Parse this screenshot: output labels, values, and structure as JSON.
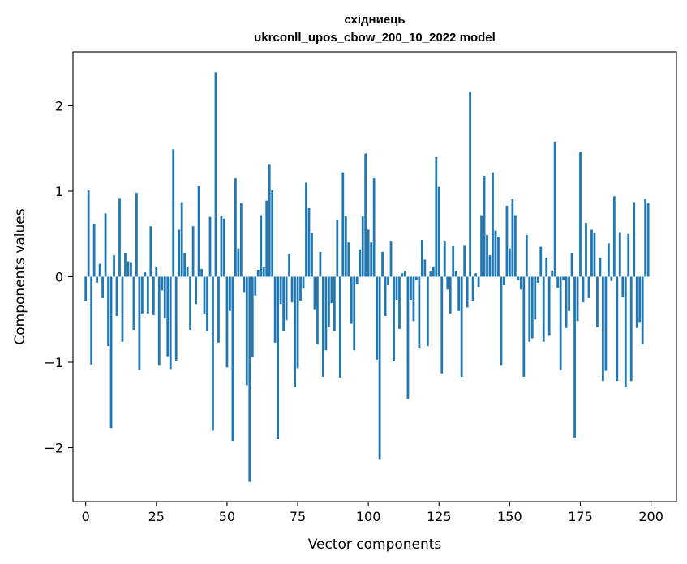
{
  "chart_data": {
    "type": "bar",
    "title_line1": "східниець",
    "title_line2": "ukrconll_upos_cbow_200_10_2022 model",
    "xlabel": "Vector components",
    "ylabel": "Components values",
    "xlim": [
      -4.5,
      209
    ],
    "ylim": [
      -2.63,
      2.63
    ],
    "xticks": [
      0,
      25,
      50,
      75,
      100,
      125,
      150,
      175,
      200
    ],
    "yticks": [
      -2,
      -1,
      0,
      1,
      2
    ],
    "ytick_labels": [
      "−2",
      "−1",
      "0",
      "1",
      "2"
    ],
    "bar_color": "#1f77b4",
    "grid": false,
    "legend": "none",
    "x": [
      0,
      1,
      2,
      3,
      4,
      5,
      6,
      7,
      8,
      9,
      10,
      11,
      12,
      13,
      14,
      15,
      16,
      17,
      18,
      19,
      20,
      21,
      22,
      23,
      24,
      25,
      26,
      27,
      28,
      29,
      30,
      31,
      32,
      33,
      34,
      35,
      36,
      37,
      38,
      39,
      40,
      41,
      42,
      43,
      44,
      45,
      46,
      47,
      48,
      49,
      50,
      51,
      52,
      53,
      54,
      55,
      56,
      57,
      58,
      59,
      60,
      61,
      62,
      63,
      64,
      65,
      66,
      67,
      68,
      69,
      70,
      71,
      72,
      73,
      74,
      75,
      76,
      77,
      78,
      79,
      80,
      81,
      82,
      83,
      84,
      85,
      86,
      87,
      88,
      89,
      90,
      91,
      92,
      93,
      94,
      95,
      96,
      97,
      98,
      99,
      100,
      101,
      102,
      103,
      104,
      105,
      106,
      107,
      108,
      109,
      110,
      111,
      112,
      113,
      114,
      115,
      116,
      117,
      118,
      119,
      120,
      121,
      122,
      123,
      124,
      125,
      126,
      127,
      128,
      129,
      130,
      131,
      132,
      133,
      134,
      135,
      136,
      137,
      138,
      139,
      140,
      141,
      142,
      143,
      144,
      145,
      146,
      147,
      148,
      149,
      150,
      151,
      152,
      153,
      154,
      155,
      156,
      157,
      158,
      159,
      160,
      161,
      162,
      163,
      164,
      165,
      166,
      167,
      168,
      169,
      170,
      171,
      172,
      173,
      174,
      175,
      176,
      177,
      178,
      179,
      180,
      181,
      182,
      183,
      184,
      185,
      186,
      187,
      188,
      189,
      190,
      191,
      192,
      193,
      194,
      195,
      196,
      197,
      198,
      199
    ],
    "values": [
      -0.28,
      1.01,
      -1.03,
      0.62,
      -0.07,
      0.15,
      -0.25,
      0.74,
      -0.81,
      -1.77,
      0.25,
      -0.46,
      0.92,
      -0.76,
      0.28,
      0.18,
      0.17,
      -0.62,
      0.98,
      -1.09,
      -0.43,
      0.05,
      -0.43,
      0.59,
      -0.45,
      0.12,
      -1.04,
      -0.16,
      -0.49,
      -0.93,
      -1.08,
      1.49,
      -0.98,
      0.55,
      0.87,
      0.28,
      0.12,
      -0.62,
      0.59,
      -0.32,
      1.06,
      0.09,
      -0.44,
      -0.64,
      0.7,
      -1.8,
      2.39,
      -0.77,
      0.71,
      0.68,
      -1.06,
      -0.4,
      -1.92,
      1.15,
      0.33,
      0.86,
      -0.18,
      -1.27,
      -2.4,
      -0.94,
      -0.22,
      0.08,
      0.72,
      0.11,
      0.89,
      1.31,
      1.01,
      -0.77,
      -1.9,
      -0.32,
      -0.63,
      -0.51,
      0.27,
      -0.3,
      -1.29,
      -1.07,
      -0.28,
      -0.14,
      1.1,
      0.8,
      0.51,
      -0.38,
      -0.79,
      0.29,
      -1.17,
      -0.86,
      -0.59,
      -0.31,
      -0.64,
      0.66,
      -1.18,
      1.22,
      0.71,
      0.4,
      -0.55,
      -0.86,
      -0.09,
      0.32,
      0.71,
      1.44,
      0.55,
      0.4,
      1.15,
      -0.97,
      -2.14,
      0.29,
      -0.46,
      -0.1,
      0.41,
      -0.99,
      -0.27,
      -0.61,
      0.04,
      0.07,
      -1.43,
      -0.27,
      -0.52,
      -0.04,
      -0.84,
      0.43,
      0.2,
      -0.81,
      0.06,
      0.12,
      1.4,
      1.05,
      -1.13,
      0.41,
      -0.15,
      -0.43,
      0.36,
      0.07,
      -0.4,
      -1.17,
      0.37,
      -0.36,
      2.16,
      -0.28,
      0.04,
      -0.12,
      0.72,
      1.18,
      0.49,
      0.25,
      1.22,
      0.54,
      0.47,
      -1.04,
      -0.1,
      0.83,
      0.33,
      0.91,
      0.72,
      -0.04,
      -0.15,
      -1.17,
      0.49,
      -0.76,
      -0.72,
      -0.5,
      -0.07,
      0.35,
      -0.76,
      0.22,
      -0.69,
      0.07,
      1.58,
      -0.13,
      -1.09,
      -0.04,
      -0.6,
      -0.4,
      0.28,
      -1.88,
      -0.52,
      1.46,
      -0.3,
      0.63,
      -0.25,
      0.55,
      0.51,
      -0.59,
      0.22,
      -1.22,
      -1.1,
      0.39,
      -0.05,
      0.94,
      -1.22,
      0.52,
      -0.24,
      -1.29,
      0.5,
      -1.22,
      0.87,
      -0.6,
      -0.53,
      -0.79,
      0.91,
      0.86
    ]
  }
}
